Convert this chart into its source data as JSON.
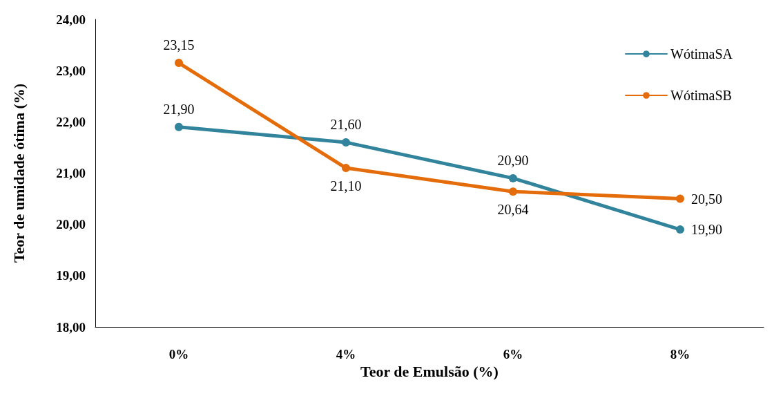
{
  "chart_data": {
    "type": "line",
    "xlabel": "Teor de Emulsão (%)",
    "ylabel": "Teor de umidade ótima (%)",
    "categories": [
      "0%",
      "4%",
      "6%",
      "8%"
    ],
    "series": [
      {
        "name": "WótimaSA",
        "color": "#31849b",
        "values": [
          21.9,
          21.6,
          20.9,
          19.9
        ],
        "value_labels": [
          "21,90",
          "21,60",
          "20,90",
          "19,90"
        ]
      },
      {
        "name": "WótimaSB",
        "color": "#e46c0a",
        "values": [
          23.15,
          21.1,
          20.64,
          20.5
        ],
        "value_labels": [
          "23,15",
          "21,10",
          "20,64",
          "20,50"
        ]
      }
    ],
    "ylim": [
      18,
      24
    ],
    "yticks": [
      {
        "value": 18,
        "label": "18,00"
      },
      {
        "value": 19,
        "label": "19,00"
      },
      {
        "value": 20,
        "label": "20,00"
      },
      {
        "value": 21,
        "label": "21,00"
      },
      {
        "value": 22,
        "label": "22,00"
      },
      {
        "value": 23,
        "label": "23,00"
      },
      {
        "value": 24,
        "label": "24,00"
      }
    ],
    "grid": false,
    "legend": "top right",
    "marker": "circle",
    "line_style": "solid"
  }
}
